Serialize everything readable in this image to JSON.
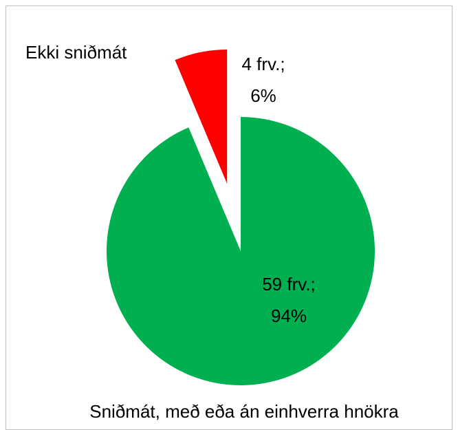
{
  "chart_data": {
    "type": "pie",
    "categories": [
      "Sniðmát, með eða án einhverra hnökra",
      "Ekki sniðmát"
    ],
    "values": [
      59,
      4
    ],
    "value_labels": [
      [
        "59 frv.;",
        "94%"
      ],
      [
        "4 frv.;",
        "6%"
      ]
    ],
    "colors": [
      "#00b050",
      "#ff0000"
    ]
  }
}
